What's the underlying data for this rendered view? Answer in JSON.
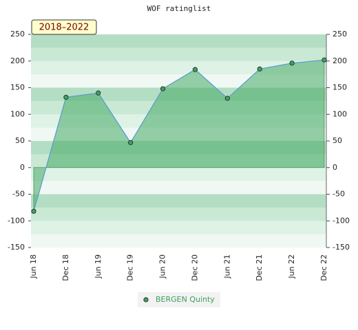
{
  "chart_data": {
    "type": "area",
    "title": "WOF ratinglist",
    "annotation": "2018–2022",
    "categories": [
      "Jun 18",
      "Dec 18",
      "Jun 19",
      "Dec 19",
      "Jun 20",
      "Dec 20",
      "Jun 21",
      "Dec 21",
      "Jun 22",
      "Dec 22"
    ],
    "series": [
      {
        "name": "BERGEN Quinty",
        "color": "#3f9f5f",
        "values": [
          -82,
          132,
          140,
          47,
          148,
          184,
          130,
          185,
          196,
          202
        ]
      }
    ],
    "ylim": [
      -150,
      250
    ],
    "yticks": [
      -150,
      -100,
      -50,
      0,
      50,
      100,
      150,
      200,
      250
    ],
    "y2lim": [
      -150,
      250
    ],
    "y2ticks": [
      -150,
      -100,
      -50,
      0,
      50,
      100,
      150,
      200,
      250
    ]
  }
}
